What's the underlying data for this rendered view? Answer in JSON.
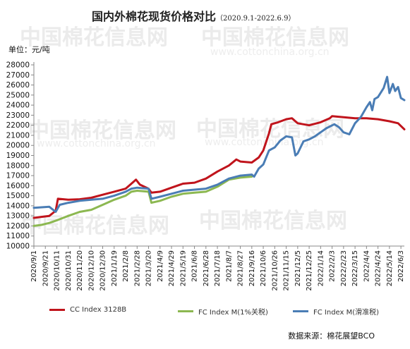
{
  "title": {
    "main": "国内外棉花现货价格对比",
    "range": "（2020.9.1-2022.6.9）"
  },
  "unit": "单位：元/吨",
  "source": "数据来源：棉花展望BCO",
  "watermark": {
    "brand": "中国棉花信息网",
    "url": "www.cottonchina.org.cn"
  },
  "chart_data": {
    "type": "line",
    "ylim": [
      10000,
      28000
    ],
    "y_ticks": [
      10000,
      11000,
      12000,
      13000,
      14000,
      15000,
      16000,
      17000,
      18000,
      19000,
      20000,
      21000,
      22000,
      23000,
      24000,
      25000,
      26000,
      27000,
      28000
    ],
    "x_ticks": [
      "2020/9/1",
      "2020/9/21",
      "2020/10/11",
      "2020/10/31",
      "2020/11/20",
      "2020/12/10",
      "2020/12/30",
      "2021/1/19",
      "2021/2/8",
      "2021/2/28",
      "2021/3/20",
      "2021/4/9",
      "2021/4/29",
      "2021/5/19",
      "2021/6/8",
      "2021/6/28",
      "2021/7/18",
      "2021/8/7",
      "2021/8/27",
      "2021/9/16",
      "2021/10/6",
      "2021/10/26",
      "2021/11/15",
      "2021/12/5",
      "2021/12/25",
      "2022/1/14",
      "2022/2/3",
      "2022/2/23",
      "2022/3/15",
      "2022/4/4",
      "2022/4/24",
      "2022/5/14",
      "2022/6/3"
    ],
    "x_date_range": [
      "2020-09-01",
      "2022-06-09"
    ],
    "grid": false,
    "legend_position": "bottom",
    "series": [
      {
        "name": "CC Index 3128B",
        "color": "#c0141c",
        "points": [
          [
            "2020-09-01",
            12800
          ],
          [
            "2020-09-14",
            12900
          ],
          [
            "2020-09-28",
            13000
          ],
          [
            "2020-10-09",
            13500
          ],
          [
            "2020-10-13",
            14700
          ],
          [
            "2020-10-31",
            14600
          ],
          [
            "2020-11-20",
            14650
          ],
          [
            "2020-12-10",
            14800
          ],
          [
            "2020-12-30",
            15100
          ],
          [
            "2021-01-19",
            15400
          ],
          [
            "2021-02-08",
            15700
          ],
          [
            "2021-02-18",
            16200
          ],
          [
            "2021-02-26",
            16600
          ],
          [
            "2021-03-05",
            16100
          ],
          [
            "2021-03-20",
            15700
          ],
          [
            "2021-03-25",
            15300
          ],
          [
            "2021-04-09",
            15400
          ],
          [
            "2021-04-29",
            15800
          ],
          [
            "2021-05-19",
            16200
          ],
          [
            "2021-06-08",
            16300
          ],
          [
            "2021-06-28",
            16700
          ],
          [
            "2021-07-18",
            17400
          ],
          [
            "2021-08-07",
            18000
          ],
          [
            "2021-08-20",
            18600
          ],
          [
            "2021-08-27",
            18400
          ],
          [
            "2021-09-16",
            18300
          ],
          [
            "2021-09-28",
            18800
          ],
          [
            "2021-10-06",
            19500
          ],
          [
            "2021-10-16",
            21200
          ],
          [
            "2021-10-20",
            22100
          ],
          [
            "2021-11-01",
            22300
          ],
          [
            "2021-11-15",
            22600
          ],
          [
            "2021-11-25",
            22700
          ],
          [
            "2021-12-05",
            22200
          ],
          [
            "2021-12-25",
            22000
          ],
          [
            "2022-01-14",
            22300
          ],
          [
            "2022-01-30",
            22700
          ],
          [
            "2022-02-03",
            22900
          ],
          [
            "2022-02-23",
            22800
          ],
          [
            "2022-03-15",
            22700
          ],
          [
            "2022-04-04",
            22700
          ],
          [
            "2022-04-24",
            22600
          ],
          [
            "2022-05-14",
            22400
          ],
          [
            "2022-05-29",
            22200
          ],
          [
            "2022-06-09",
            21600
          ]
        ]
      },
      {
        "name": "FC Index M(1%关税)",
        "color": "#8cb851",
        "points": [
          [
            "2020-09-01",
            12000
          ],
          [
            "2020-09-14",
            12100
          ],
          [
            "2020-09-28",
            12300
          ],
          [
            "2020-10-13",
            12600
          ],
          [
            "2020-10-31",
            13000
          ],
          [
            "2020-11-20",
            13400
          ],
          [
            "2020-12-10",
            13600
          ],
          [
            "2020-12-30",
            14100
          ],
          [
            "2021-01-19",
            14600
          ],
          [
            "2021-02-08",
            15000
          ],
          [
            "2021-02-18",
            15400
          ],
          [
            "2021-02-28",
            15500
          ],
          [
            "2021-03-20",
            15400
          ],
          [
            "2021-03-25",
            14300
          ],
          [
            "2021-04-09",
            14500
          ],
          [
            "2021-04-29",
            14900
          ],
          [
            "2021-05-19",
            15200
          ],
          [
            "2021-06-08",
            15300
          ],
          [
            "2021-06-28",
            15400
          ],
          [
            "2021-07-18",
            15900
          ],
          [
            "2021-08-07",
            16600
          ],
          [
            "2021-08-27",
            16800
          ],
          [
            "2021-09-16",
            16900
          ]
        ]
      },
      {
        "name": "FC Index M(滑准税)",
        "color": "#4a7db5",
        "points": [
          [
            "2020-09-01",
            13800
          ],
          [
            "2020-09-28",
            13900
          ],
          [
            "2020-10-09",
            13400
          ],
          [
            "2020-10-16",
            14100
          ],
          [
            "2020-10-31",
            14300
          ],
          [
            "2020-11-20",
            14500
          ],
          [
            "2020-12-10",
            14600
          ],
          [
            "2020-12-30",
            14700
          ],
          [
            "2021-01-19",
            15000
          ],
          [
            "2021-02-08",
            15400
          ],
          [
            "2021-02-18",
            15700
          ],
          [
            "2021-02-28",
            15800
          ],
          [
            "2021-03-20",
            15700
          ],
          [
            "2021-03-25",
            14700
          ],
          [
            "2021-04-09",
            14900
          ],
          [
            "2021-04-29",
            15200
          ],
          [
            "2021-05-19",
            15500
          ],
          [
            "2021-06-08",
            15600
          ],
          [
            "2021-06-28",
            15700
          ],
          [
            "2021-07-18",
            16100
          ],
          [
            "2021-08-07",
            16700
          ],
          [
            "2021-08-27",
            17000
          ],
          [
            "2021-09-16",
            17100
          ],
          [
            "2021-09-20",
            16900
          ],
          [
            "2021-09-28",
            17700
          ],
          [
            "2021-10-06",
            18100
          ],
          [
            "2021-10-16",
            19500
          ],
          [
            "2021-10-26",
            19800
          ],
          [
            "2021-11-05",
            20500
          ],
          [
            "2021-11-15",
            20900
          ],
          [
            "2021-11-25",
            20800
          ],
          [
            "2021-12-01",
            19000
          ],
          [
            "2021-12-05",
            19200
          ],
          [
            "2021-12-15",
            20400
          ],
          [
            "2021-12-25",
            20600
          ],
          [
            "2022-01-04",
            20900
          ],
          [
            "2022-01-14",
            21300
          ],
          [
            "2022-01-24",
            21700
          ],
          [
            "2022-02-07",
            22100
          ],
          [
            "2022-02-15",
            21800
          ],
          [
            "2022-02-23",
            21300
          ],
          [
            "2022-03-05",
            21100
          ],
          [
            "2022-03-15",
            22200
          ],
          [
            "2022-03-25",
            22800
          ],
          [
            "2022-04-04",
            23800
          ],
          [
            "2022-04-10",
            24300
          ],
          [
            "2022-04-14",
            23500
          ],
          [
            "2022-04-18",
            24600
          ],
          [
            "2022-04-24",
            24800
          ],
          [
            "2022-05-04",
            25700
          ],
          [
            "2022-05-10",
            26800
          ],
          [
            "2022-05-14",
            25200
          ],
          [
            "2022-05-20",
            26100
          ],
          [
            "2022-05-24",
            25400
          ],
          [
            "2022-05-29",
            25800
          ],
          [
            "2022-06-03",
            24700
          ],
          [
            "2022-06-09",
            24500
          ]
        ]
      }
    ]
  }
}
